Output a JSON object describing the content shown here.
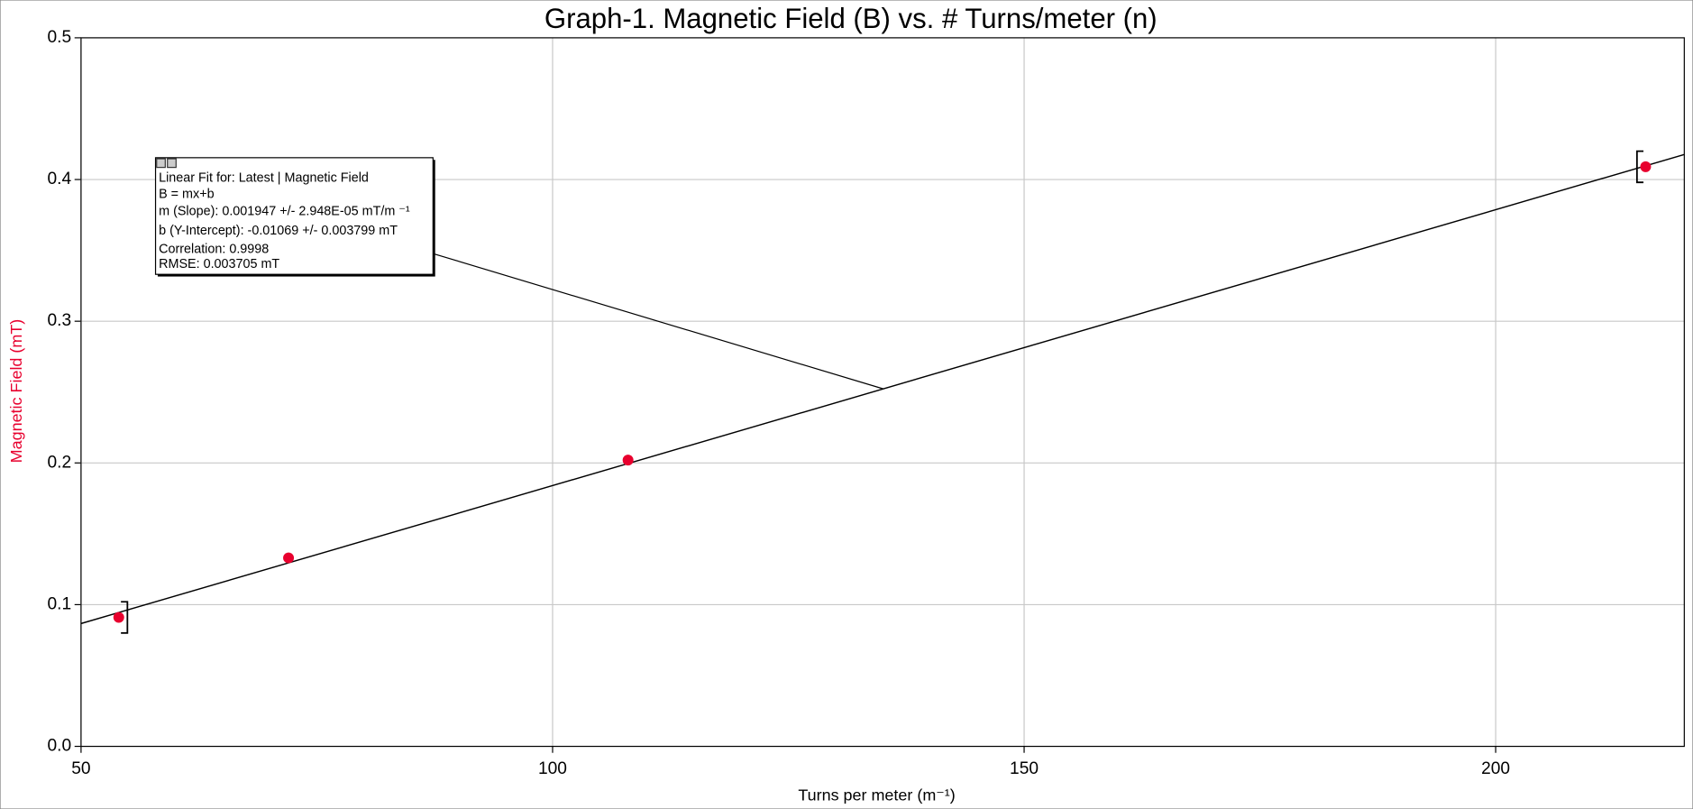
{
  "chart_data": {
    "type": "scatter",
    "title": "Graph-1. Magnetic Field (B) vs. # Turns/meter (n)",
    "x_label": "Turns per meter (m⁻¹)",
    "y_label": "Magnetic Field (mT)",
    "series": [
      {
        "name": "Magnetic Field",
        "color": "#e8002e",
        "x": [
          54.0,
          72.0,
          108.0,
          215.9
        ],
        "values": [
          0.091,
          0.133,
          0.202,
          0.409
        ],
        "errors": [
          0.011,
          null,
          null,
          0.011
        ]
      }
    ],
    "fit": {
      "slope": 0.001947,
      "intercept": -0.01069
    },
    "annotation": [
      "Linear Fit for: Latest | Magnetic Field",
      "B = mx+b",
      "m (Slope): 0.001947 +/- 2.948E-05 mT/m ⁻¹",
      "b (Y-Intercept): -0.01069 +/- 0.003799 mT",
      "Correlation: 0.9998",
      "RMSE: 0.003705 mT"
    ],
    "xlim": [
      50,
      220
    ],
    "xticks": [
      50,
      100,
      150,
      200
    ],
    "ylim": [
      0,
      0.5
    ],
    "yticks": [
      {
        "value": 0,
        "label": "0.0"
      },
      0.1,
      0.2,
      0.3,
      0.4,
      0.5
    ],
    "grid": true
  }
}
